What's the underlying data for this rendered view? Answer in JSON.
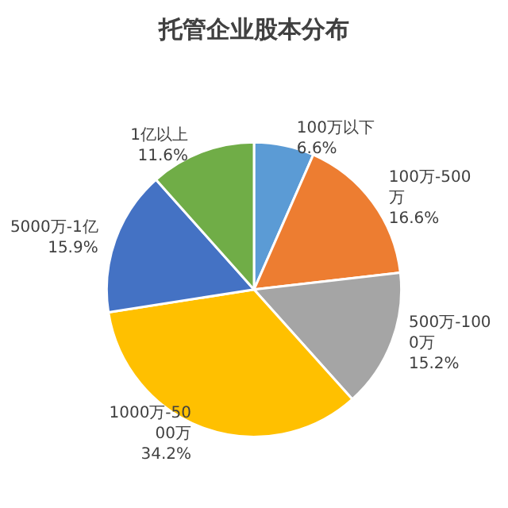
{
  "chart_data": {
    "type": "pie",
    "title": "托管企业股本分布",
    "categories": [
      "100万以下",
      "100万-500万",
      "500万-1000万",
      "1000万-5000万",
      "5000万-1亿",
      "1亿以上"
    ],
    "values": [
      6.6,
      16.6,
      15.2,
      34.2,
      15.9,
      11.6
    ],
    "value_labels": [
      "6.6%",
      "16.6%",
      "15.2%",
      "34.2%",
      "15.9%",
      "11.6%"
    ],
    "colors": [
      "#5b9bd5",
      "#ed7d31",
      "#a5a5a5",
      "#ffc000",
      "#4472c4",
      "#70ad47"
    ],
    "legend": false
  }
}
